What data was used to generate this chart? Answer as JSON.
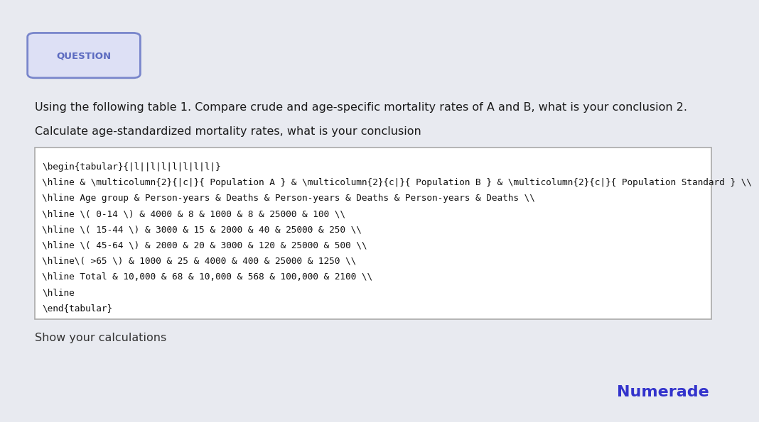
{
  "background_color": "#e8eaf0",
  "question_label": "QUESTION",
  "question_label_color": "#5c6bc0",
  "question_label_bg": "#dde0f5",
  "question_label_border": "#7986cb",
  "line1": "Using the following table 1. Compare crude and age-specific mortality rates of A and B, what is your conclusion 2.",
  "line2": "Calculate age-standardized mortality rates, what is your conclusion",
  "text_color": "#1a1a1a",
  "box_bg": "#ffffff",
  "box_border": "#aaaaaa",
  "latex_lines": [
    "\\begin{tabular}{|l||l|l|l|l|l|l|}",
    "\\hline & \\multicolumn{2}{|c|}{ Population A } & \\multicolumn{2}{c|}{ Population B } & \\multicolumn{2}{c|}{ Population Standard } \\\\",
    "\\hline Age group & Person-years & Deaths & Person-years & Deaths & Person-years & Deaths \\\\",
    "\\hline \\( 0-14 \\) & 4000 & 8 & 1000 & 8 & 25000 & 100 \\\\",
    "\\hline \\( 15-44 \\) & 3000 & 15 & 2000 & 40 & 25000 & 250 \\\\",
    "\\hline \\( 45-64 \\) & 2000 & 20 & 3000 & 120 & 25000 & 500 \\\\",
    "\\hline\\( >65 \\) & 1000 & 25 & 4000 & 400 & 25000 & 1250 \\\\",
    "\\hline Total & 10,000 & 68 & 10,000 & 568 & 100,000 & 2100 \\\\",
    "\\hline",
    "\\end{tabular}"
  ],
  "footer_text": "Show your calculations",
  "footer_color": "#333333",
  "numerade_text": "Numerade",
  "numerade_color": "#3333cc"
}
